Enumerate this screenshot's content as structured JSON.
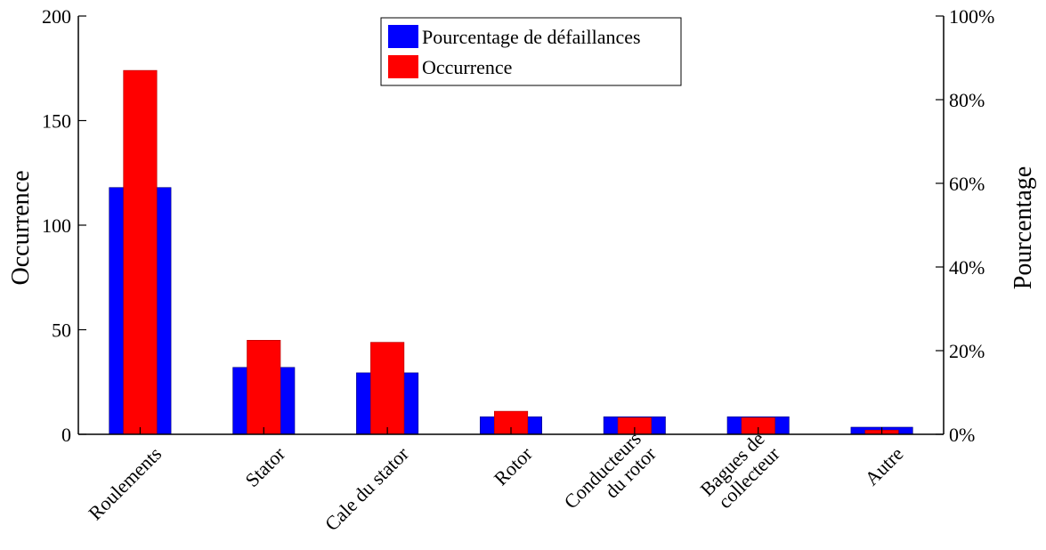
{
  "chart_data": {
    "type": "bar",
    "categories": [
      "Roulements",
      "Stator",
      "Cale du stator",
      "Rotor",
      [
        "Conducteurs",
        "du rotor"
      ],
      [
        "Bagues de",
        "collecteur"
      ],
      "Autre"
    ],
    "series": [
      {
        "name": "Pourcentage de défaillances",
        "axis": "right",
        "color": "#0000ff",
        "values": [
          59,
          16,
          14.7,
          4.2,
          4.2,
          4.2,
          1.7
        ]
      },
      {
        "name": "Occurrence",
        "axis": "left",
        "color": "#ff0000",
        "values": [
          174,
          45,
          44,
          11,
          8,
          8,
          2
        ]
      }
    ],
    "ylabel": "Occurrence",
    "y2label": "Pourcentage",
    "ylim": [
      0,
      200
    ],
    "y2lim": [
      0,
      100
    ],
    "yticks": [
      "0",
      "50",
      "100",
      "150",
      "200"
    ],
    "y2ticks": [
      "0%",
      "20%",
      "40%",
      "60%",
      "80%",
      "100%"
    ],
    "legend_placement": "top-center",
    "grid": false
  }
}
